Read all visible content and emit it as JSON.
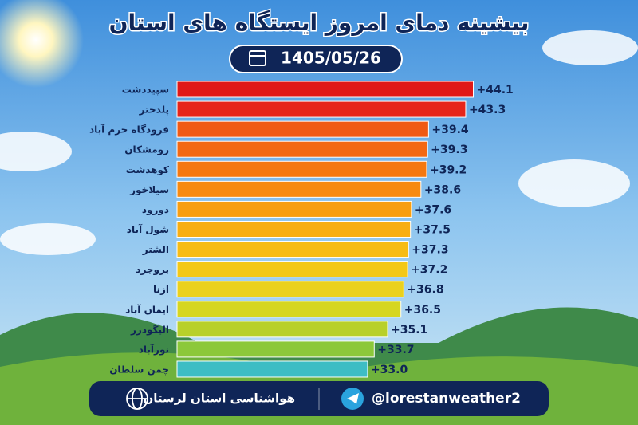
{
  "chart_data": {
    "type": "bar",
    "orientation": "horizontal",
    "title": "بیشینه دمای امروز ایستگاه های استان",
    "subtitle": "1405/05/26",
    "categories": [
      "سپیددشت",
      "پلدختر",
      "فرودگاه خرم آباد",
      "رومشکان",
      "کوهدشت",
      "سیلاخور",
      "دورود",
      "شول آباد",
      "الشتر",
      "بروجرد",
      "ازنا",
      "ایمان آباد",
      "الیگودرز",
      "نورآباد",
      "چمن سلطان"
    ],
    "values": [
      44.1,
      43.3,
      39.4,
      39.3,
      39.2,
      38.6,
      37.6,
      37.5,
      37.3,
      37.2,
      36.8,
      36.5,
      35.1,
      33.7,
      33.0
    ],
    "value_labels": [
      "+44.1",
      "+43.3",
      "+39.4",
      "+39.3",
      "+39.2",
      "+38.6",
      "+37.6",
      "+37.5",
      "+37.3",
      "+37.2",
      "+36.8",
      "+36.5",
      "+35.1",
      "+33.7",
      "+33.0"
    ],
    "colors": [
      "#e01818",
      "#e6251a",
      "#f05a14",
      "#f36812",
      "#f57810",
      "#f78a10",
      "#f89e10",
      "#f8ae12",
      "#f7bc14",
      "#f3c817",
      "#ead11c",
      "#d6d620",
      "#b8d02a",
      "#8cc83a",
      "#3ebdc4"
    ],
    "xlim": [
      13,
      50
    ]
  },
  "footer": {
    "organization": "هواشناسی استان لرستان",
    "channel": "@lorestanweather2"
  }
}
